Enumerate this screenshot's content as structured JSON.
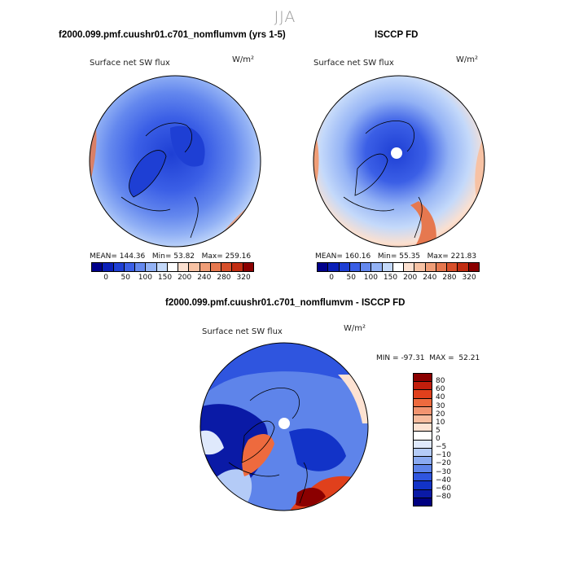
{
  "season": "JJA",
  "panels": [
    {
      "title": "f2000.099.pmf.cuushr01.c701_nomflumvm (yrs 1-5)",
      "field_label": "Surface net SW flux",
      "units": "W/m²",
      "stats": {
        "mean_label": "MEAN=",
        "mean": "144.36",
        "min_label": "Min=",
        "min": "53.82",
        "max_label": "Max=",
        "max": "259.16"
      }
    },
    {
      "title": "ISCCP FD",
      "field_label": "Surface net SW flux",
      "units": "W/m²",
      "stats": {
        "mean_label": "MEAN=",
        "mean": "160.16",
        "min_label": "Min=",
        "min": "55.35",
        "max_label": "Max=",
        "max": "221.83"
      }
    },
    {
      "title": "f2000.099.pmf.cuushr01.c701_nomflumvm - ISCCP FD",
      "field_label": "Surface net SW flux",
      "units": "W/m²",
      "stats": {
        "min_label": "MIN =",
        "min": "-97.31",
        "max_label": "MAX =",
        "max": "52.21"
      }
    }
  ],
  "colorbar_abs": {
    "colors": [
      "#00008b",
      "#0a1fb8",
      "#1e3fd4",
      "#3b5fe6",
      "#6488ee",
      "#93b2f5",
      "#c4d9fa",
      "#ffffff",
      "#fbe0d0",
      "#f7c2a4",
      "#f09e78",
      "#e6784f",
      "#d8502b",
      "#c22d12",
      "#8b0000"
    ],
    "tick_labels": [
      "0",
      "50",
      "100",
      "150",
      "200",
      "240",
      "280",
      "320"
    ]
  },
  "colorbar_diff": {
    "colors": [
      "#8b0000",
      "#c21e0c",
      "#e0401c",
      "#ee6a3e",
      "#f29470",
      "#f7bc9e",
      "#fde2d2",
      "#ffffff",
      "#dfe9fc",
      "#b4cbf7",
      "#8aaaf1",
      "#5e84ea",
      "#2f55df",
      "#1233c8",
      "#0a1aa6",
      "#000080"
    ],
    "tick_labels": [
      "80",
      "60",
      "40",
      "30",
      "20",
      "10",
      "5",
      "0",
      "−5",
      "−10",
      "−20",
      "−30",
      "−40",
      "−60",
      "−80"
    ]
  }
}
